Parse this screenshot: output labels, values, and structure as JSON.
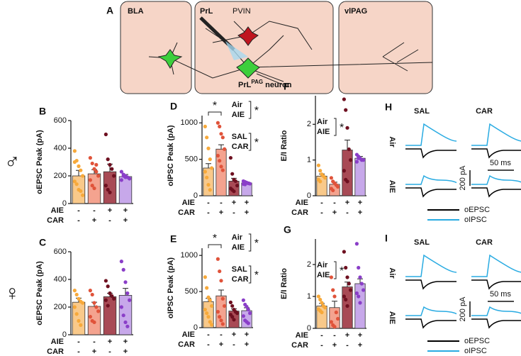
{
  "diagram": {
    "letter": "A",
    "regions": [
      "BLA",
      "PrL",
      "vlPAG"
    ],
    "interneuron": "PVIN",
    "neuron": "PrL",
    "neuron_sup": "PAG",
    "neuron_suffix": " neuron"
  },
  "sexes": [
    "♂",
    "♀"
  ],
  "chart_data": [
    {
      "type": "bar",
      "letter": "B",
      "ylabel": "oEPSC Peak (pA)",
      "ylim": [
        0,
        600
      ],
      "yticks": [
        0,
        200,
        400,
        600
      ],
      "factors": [
        {
          "name": "AIE",
          "levels": [
            "-",
            "-",
            "+",
            "+"
          ]
        },
        {
          "name": "CAR",
          "levels": [
            "-",
            "+",
            "-",
            "+"
          ]
        }
      ],
      "colors": [
        "#f9c98a",
        "#f4a38f",
        "#a84a55",
        "#c7a8ea"
      ],
      "dot_colors": [
        "#f7a93a",
        "#e0533a",
        "#6e1020",
        "#8a3ec8"
      ],
      "values": [
        200,
        215,
        230,
        195
      ],
      "errors": [
        40,
        30,
        55,
        15
      ],
      "points": [
        [
          380,
          310,
          270,
          240,
          200,
          160,
          140,
          100,
          90,
          60,
          300
        ],
        [
          330,
          290,
          250,
          230,
          200,
          170,
          130,
          110,
          280
        ],
        [
          500,
          320,
          280,
          250,
          200,
          130,
          100,
          80
        ],
        [
          230,
          210,
          200,
          190,
          180,
          170,
          200,
          190
        ]
      ]
    },
    {
      "type": "bar",
      "letter": "C",
      "ylabel": "oEPSC Peak (pA)",
      "ylim": [
        0,
        600
      ],
      "yticks": [
        0,
        200,
        400,
        600
      ],
      "factors": [
        {
          "name": "AIE",
          "levels": [
            "-",
            "-",
            "+",
            "+"
          ]
        },
        {
          "name": "CAR",
          "levels": [
            "-",
            "+",
            "-",
            "+"
          ]
        }
      ],
      "colors": [
        "#f9c98a",
        "#f4a38f",
        "#a84a55",
        "#c7a8ea"
      ],
      "dot_colors": [
        "#f7a93a",
        "#e0533a",
        "#6e1020",
        "#8a3ec8"
      ],
      "values": [
        235,
        205,
        275,
        285
      ],
      "errors": [
        30,
        30,
        25,
        50
      ],
      "points": [
        [
          320,
          290,
          260,
          240,
          230,
          200,
          150,
          100,
          70
        ],
        [
          320,
          290,
          230,
          200,
          170,
          130,
          100,
          90
        ],
        [
          390,
          350,
          300,
          280,
          260,
          250,
          210
        ],
        [
          530,
          470,
          380,
          300,
          250,
          200,
          140,
          90,
          60
        ]
      ]
    },
    {
      "type": "bar",
      "letter": "D",
      "ylabel": "oIPSC Peak (pA)",
      "ylim": [
        0,
        1100
      ],
      "yticks": [
        0,
        500,
        1000
      ],
      "factors": [
        {
          "name": "AIE",
          "levels": [
            "-",
            "-",
            "+",
            "+"
          ]
        },
        {
          "name": "CAR",
          "levels": [
            "-",
            "+",
            "-",
            "+"
          ]
        }
      ],
      "colors": [
        "#f9c98a",
        "#f4a38f",
        "#a84a55",
        "#c7a8ea"
      ],
      "dot_colors": [
        "#f7a93a",
        "#e0533a",
        "#6e1020",
        "#8a3ec8"
      ],
      "values": [
        380,
        640,
        200,
        175
      ],
      "errors": [
        60,
        60,
        40,
        15
      ],
      "points": [
        [
          950,
          800,
          650,
          500,
          380,
          330,
          250,
          150,
          80
        ],
        [
          1000,
          950,
          850,
          800,
          640,
          550,
          480,
          400,
          350
        ],
        [
          520,
          300,
          220,
          200,
          140,
          100,
          80,
          60
        ],
        [
          200,
          190,
          180,
          170,
          165,
          160,
          155
        ]
      ],
      "pair_star": "*",
      "contrasts": [
        {
          "labels": [
            "Air",
            "AIE"
          ],
          "star": "*"
        },
        {
          "labels": [
            "SAL",
            "CAR"
          ],
          "star": "*"
        }
      ]
    },
    {
      "type": "bar",
      "letter": "E",
      "ylabel": "oIPSC Peak (pA)",
      "ylim": [
        0,
        1100
      ],
      "yticks": [
        0,
        500,
        1000
      ],
      "factors": [
        {
          "name": "AIE",
          "levels": [
            "-",
            "-",
            "+",
            "+"
          ]
        },
        {
          "name": "CAR",
          "levels": [
            "-",
            "+",
            "-",
            "+"
          ]
        }
      ],
      "colors": [
        "#f9c98a",
        "#f4a38f",
        "#a84a55",
        "#c7a8ea"
      ],
      "dot_colors": [
        "#f7a93a",
        "#e0533a",
        "#6e1020",
        "#8a3ec8"
      ],
      "values": [
        360,
        440,
        230,
        235
      ],
      "errors": [
        45,
        80,
        30,
        40
      ],
      "points": [
        [
          700,
          550,
          420,
          380,
          300,
          250,
          200,
          150,
          80,
          40
        ],
        [
          950,
          780,
          650,
          400,
          300,
          220,
          150,
          100,
          50
        ],
        [
          350,
          300,
          250,
          220,
          200,
          180,
          150,
          110
        ],
        [
          380,
          320,
          290,
          250,
          200,
          160,
          100,
          80,
          60
        ]
      ],
      "pair_star": "*",
      "contrasts": [
        {
          "labels": [
            "Air",
            "AIE"
          ],
          "star": "*"
        },
        {
          "labels": [
            "SAL",
            "CAR"
          ],
          "star": "*"
        }
      ]
    },
    {
      "type": "bar",
      "letter": "F",
      "ylabel": "E/I Ratio",
      "ylim": [
        0,
        2.8
      ],
      "yticks": [
        0,
        1,
        2
      ],
      "factors": [
        {
          "name": "AIE",
          "levels": [
            "-",
            "-",
            "+",
            "+"
          ]
        },
        {
          "name": "CAR",
          "levels": [
            "-",
            "+",
            "-",
            "+"
          ]
        }
      ],
      "colors": [
        "#f9c98a",
        "#f4a38f",
        "#a84a55",
        "#c7a8ea"
      ],
      "dot_colors": [
        "#f7a93a",
        "#e0533a",
        "#6e1020",
        "#8a3ec8"
      ],
      "values": [
        0.55,
        0.32,
        1.28,
        1.05
      ],
      "errors": [
        0.06,
        0.06,
        0.28,
        0.05
      ],
      "points": [
        [
          0.85,
          0.7,
          0.6,
          0.55,
          0.5,
          0.45,
          0.4
        ],
        [
          0.5,
          0.4,
          0.35,
          0.3,
          0.25,
          0.2,
          0.15
        ],
        [
          2.7,
          2.4,
          1.9,
          1.3,
          1.0,
          0.7,
          0.45,
          0.4
        ],
        [
          1.15,
          1.1,
          1.05,
          1.0,
          1.0,
          0.95,
          1.05
        ]
      ],
      "contrasts": [
        {
          "labels": [
            "Air",
            "AIE"
          ],
          "star": "*"
        }
      ]
    },
    {
      "type": "bar",
      "letter": "G",
      "ylabel": "E/I Ratio",
      "ylim": [
        0,
        2.8
      ],
      "yticks": [
        0,
        1,
        2
      ],
      "factors": [
        {
          "name": "AIE",
          "levels": [
            "-",
            "-",
            "+",
            "+"
          ]
        },
        {
          "name": "CAR",
          "levels": [
            "-",
            "+",
            "-",
            "+"
          ]
        }
      ],
      "colors": [
        "#f9c98a",
        "#f4a38f",
        "#a84a55",
        "#c7a8ea"
      ],
      "dot_colors": [
        "#f7a93a",
        "#e0533a",
        "#6e1020",
        "#8a3ec8"
      ],
      "values": [
        0.7,
        0.65,
        1.3,
        1.4
      ],
      "errors": [
        0.08,
        0.2,
        0.15,
        0.15
      ],
      "points": [
        [
          1.0,
          0.9,
          0.8,
          0.7,
          0.65,
          0.6,
          0.55,
          0.5
        ],
        [
          1.6,
          1.2,
          1.0,
          0.5,
          0.3,
          0.2,
          0.1,
          0.05
        ],
        [
          2.4,
          1.9,
          1.6,
          1.4,
          1.2,
          1.0,
          0.9,
          0.7
        ],
        [
          2.65,
          1.9,
          1.6,
          1.4,
          1.2,
          1.1,
          1.0,
          0.8
        ]
      ],
      "contrasts": [
        {
          "labels": [
            "Air",
            "AIE"
          ],
          "star": "*"
        }
      ]
    }
  ],
  "traces": [
    {
      "letter": "H",
      "columns": [
        "SAL",
        "CAR"
      ],
      "rows": [
        "Air",
        "AIE"
      ],
      "scale_y": "200 pA",
      "scale_x": "50 ms",
      "legend": [
        {
          "name": "oEPSC",
          "color": "#000000"
        },
        {
          "name": "oIPSC",
          "color": "#29abe2"
        }
      ]
    },
    {
      "letter": "I",
      "columns": [
        "SAL",
        "CAR"
      ],
      "rows": [
        "Air",
        "AIE"
      ],
      "scale_y": "200 pA",
      "scale_x": "50 ms",
      "legend": [
        {
          "name": "oEPSC",
          "color": "#000000"
        },
        {
          "name": "oIPSC",
          "color": "#29abe2"
        }
      ]
    }
  ]
}
